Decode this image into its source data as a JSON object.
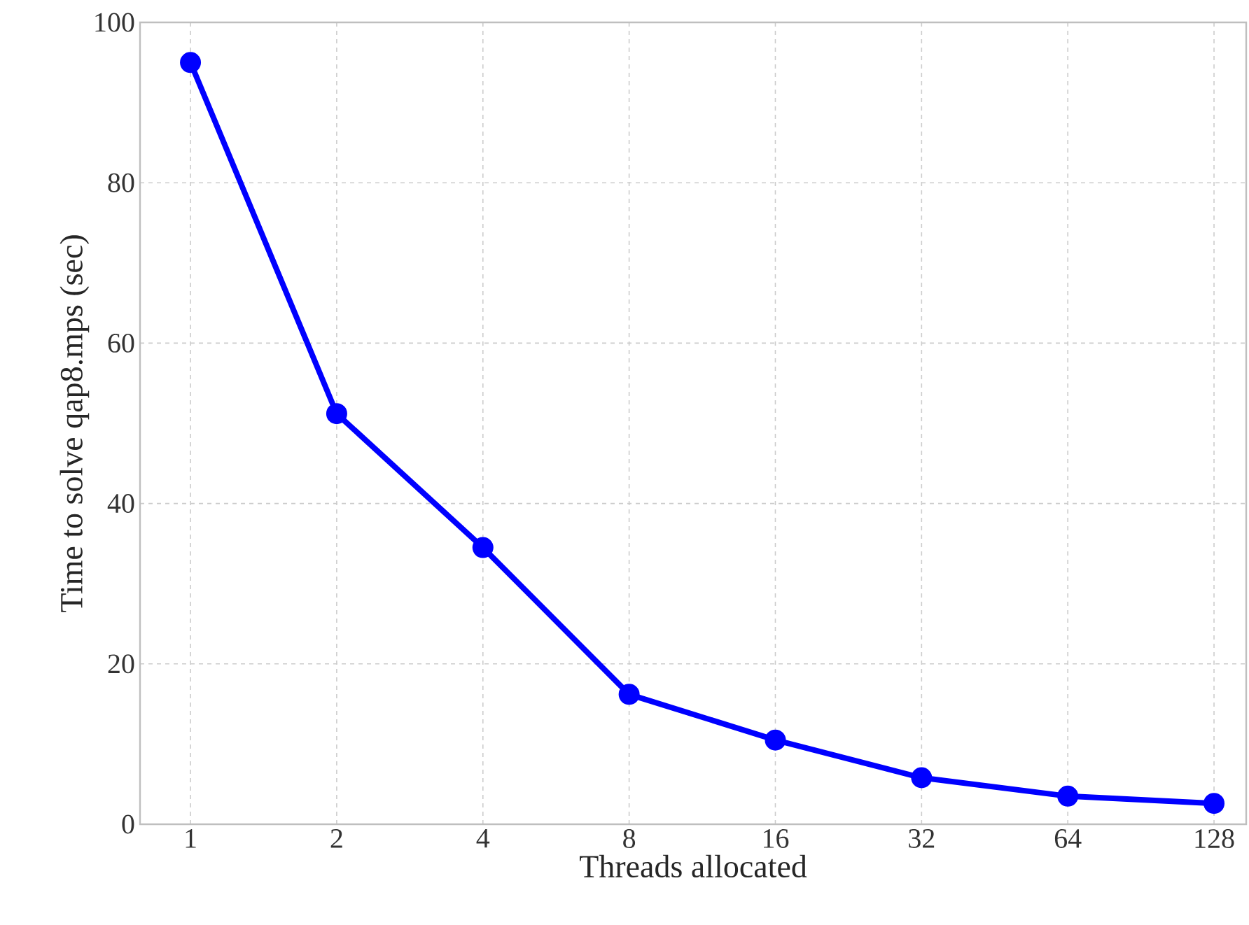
{
  "chart_data": {
    "type": "line",
    "xlabel": "Threads allocated",
    "ylabel": "Time to solve qap8.mps (sec)",
    "categories": [
      "1",
      "2",
      "4",
      "8",
      "16",
      "32",
      "64",
      "128"
    ],
    "values": [
      95,
      51.2,
      34.5,
      16.2,
      10.5,
      5.8,
      3.5,
      2.6
    ],
    "color": "#0000ff",
    "marker": "circle",
    "line_style": "solid",
    "ylim": [
      0,
      100
    ],
    "yticks": [
      0,
      20,
      40,
      60,
      80,
      100
    ],
    "grid": true
  }
}
